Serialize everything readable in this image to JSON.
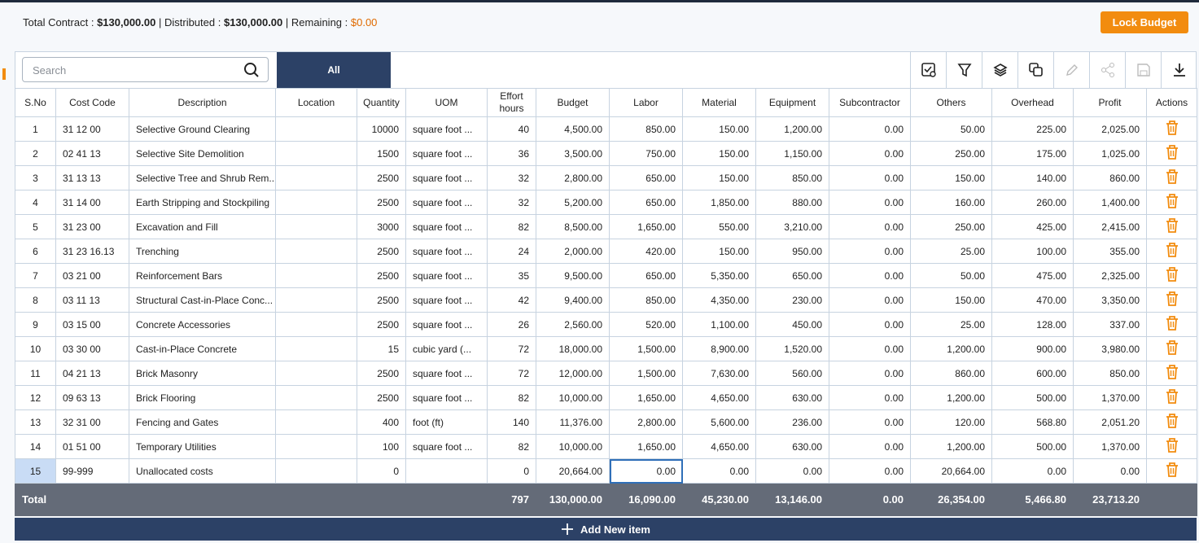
{
  "summary": {
    "contract_label": "Total Contract :",
    "contract": "$130,000.00",
    "distributed_label": "| Distributed :",
    "distributed": "$130,000.00",
    "remaining_label": "| Remaining :",
    "remaining": "$0.00"
  },
  "lock_button": "Lock Budget",
  "search_placeholder": "Search",
  "tab": "All",
  "table": {
    "headers": [
      "S.No",
      "Cost Code",
      "Description",
      "Location",
      "Quantity",
      "UOM",
      "Effort hours",
      "Budget",
      "Labor",
      "Material",
      "Equipment",
      "Subcontractor",
      "Others",
      "Overhead",
      "Profit",
      "Actions"
    ],
    "rows": [
      [
        "1",
        "31 12 00",
        "Selective Ground Clearing",
        null,
        "10000",
        "square foot ...",
        "40",
        "4,500.00",
        "850.00",
        "150.00",
        "1,200.00",
        "0.00",
        "50.00",
        "225.00",
        "2,025.00"
      ],
      [
        "2",
        "02 41 13",
        "Selective Site Demolition",
        null,
        "1500",
        "square foot ...",
        "36",
        "3,500.00",
        "750.00",
        "150.00",
        "1,150.00",
        "0.00",
        "250.00",
        "175.00",
        "1,025.00"
      ],
      [
        "3",
        "31 13 13",
        "Selective Tree and Shrub Rem...",
        null,
        "2500",
        "square foot ...",
        "32",
        "2,800.00",
        "650.00",
        "150.00",
        "850.00",
        "0.00",
        "150.00",
        "140.00",
        "860.00"
      ],
      [
        "4",
        "31 14 00",
        "Earth Stripping and Stockpiling",
        null,
        "2500",
        "square foot ...",
        "32",
        "5,200.00",
        "650.00",
        "1,850.00",
        "880.00",
        "0.00",
        "160.00",
        "260.00",
        "1,400.00"
      ],
      [
        "5",
        "31 23 00",
        "Excavation and Fill",
        null,
        "3000",
        "square foot ...",
        "82",
        "8,500.00",
        "1,650.00",
        "550.00",
        "3,210.00",
        "0.00",
        "250.00",
        "425.00",
        "2,415.00"
      ],
      [
        "6",
        "31 23 16.13",
        "Trenching",
        null,
        "2500",
        "square foot ...",
        "24",
        "2,000.00",
        "420.00",
        "150.00",
        "950.00",
        "0.00",
        "25.00",
        "100.00",
        "355.00"
      ],
      [
        "7",
        "03 21 00",
        "Reinforcement Bars",
        null,
        "2500",
        "square foot ...",
        "35",
        "9,500.00",
        "650.00",
        "5,350.00",
        "650.00",
        "0.00",
        "50.00",
        "475.00",
        "2,325.00"
      ],
      [
        "8",
        "03 11 13",
        "Structural Cast-in-Place Conc...",
        null,
        "2500",
        "square foot ...",
        "42",
        "9,400.00",
        "850.00",
        "4,350.00",
        "230.00",
        "0.00",
        "150.00",
        "470.00",
        "3,350.00"
      ],
      [
        "9",
        "03 15 00",
        "Concrete Accessories",
        null,
        "2500",
        "square foot ...",
        "26",
        "2,560.00",
        "520.00",
        "1,100.00",
        "450.00",
        "0.00",
        "25.00",
        "128.00",
        "337.00"
      ],
      [
        "10",
        "03 30 00",
        "Cast-in-Place Concrete",
        null,
        "15",
        "cubic yard (...",
        "72",
        "18,000.00",
        "1,500.00",
        "8,900.00",
        "1,520.00",
        "0.00",
        "1,200.00",
        "900.00",
        "3,980.00"
      ],
      [
        "11",
        "04 21 13",
        "Brick Masonry",
        null,
        "2500",
        "square foot ...",
        "72",
        "12,000.00",
        "1,500.00",
        "7,630.00",
        "560.00",
        "0.00",
        "860.00",
        "600.00",
        "850.00"
      ],
      [
        "12",
        "09 63 13",
        "Brick Flooring",
        null,
        "2500",
        "square foot ...",
        "82",
        "10,000.00",
        "1,650.00",
        "4,650.00",
        "630.00",
        "0.00",
        "1,200.00",
        "500.00",
        "1,370.00"
      ],
      [
        "13",
        "32 31 00",
        "Fencing and Gates",
        null,
        "400",
        "foot (ft)",
        "140",
        "11,376.00",
        "2,800.00",
        "5,600.00",
        "236.00",
        "0.00",
        "120.00",
        "568.80",
        "2,051.20"
      ],
      [
        "14",
        "01 51 00",
        "Temporary Utilities",
        null,
        "100",
        "square foot ...",
        "82",
        "10,000.00",
        "1,650.00",
        "4,650.00",
        "630.00",
        "0.00",
        "1,200.00",
        "500.00",
        "1,370.00"
      ],
      [
        "15",
        "99-999",
        "Unallocated costs",
        null,
        "0",
        null,
        "0",
        "20,664.00",
        "0.00",
        "0.00",
        "0.00",
        "0.00",
        "20,664.00",
        "0.00",
        "0.00"
      ]
    ],
    "total": {
      "label": "Total",
      "values": [
        "797",
        "130,000.00",
        "16,090.00",
        "45,230.00",
        "13,146.00",
        "0.00",
        "26,354.00",
        "5,466.80",
        "23,713.20"
      ]
    }
  },
  "add_button": "Add New item"
}
